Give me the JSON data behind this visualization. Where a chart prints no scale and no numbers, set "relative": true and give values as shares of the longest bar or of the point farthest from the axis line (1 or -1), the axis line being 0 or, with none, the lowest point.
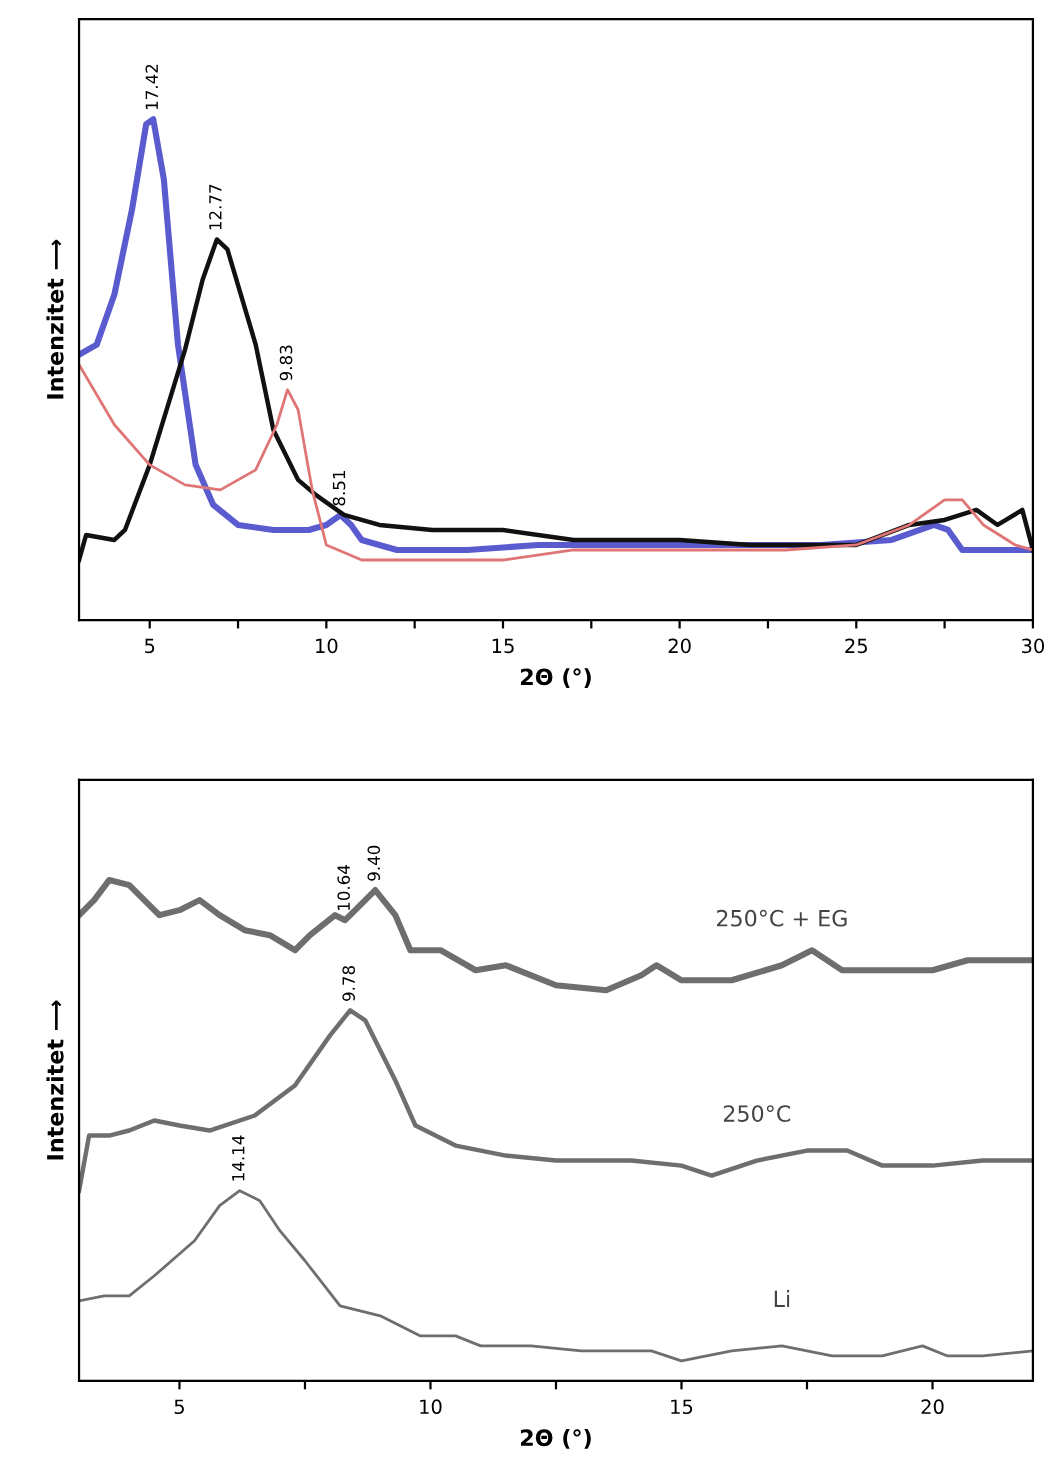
{
  "chart_data": [
    {
      "type": "line",
      "relative": true,
      "xlabel": "2Θ (°)",
      "ylabel": "Intenzitet ⟶",
      "xlim": [
        3,
        30
      ],
      "xticks": [
        5,
        {
          "value": 7.5,
          "label": null
        },
        10,
        {
          "value": 12.5,
          "label": null
        },
        15,
        {
          "value": 17.5,
          "label": null
        },
        20,
        {
          "value": 22.5,
          "label": null
        },
        25,
        {
          "value": 27.5,
          "label": null
        },
        30
      ],
      "tick_labels": "x",
      "grid": false,
      "legend": false,
      "series": [
        {
          "color": "#5b5bd0",
          "x": [
            3.0,
            3.5,
            4.0,
            4.5,
            4.9,
            5.1,
            5.4,
            5.8,
            6.3,
            6.8,
            7.5,
            8.5,
            9.5,
            10.0,
            10.4,
            10.7,
            11,
            12,
            14,
            16,
            20,
            24,
            26,
            27.2,
            27.6,
            28,
            30
          ],
          "values": [
            0.53,
            0.55,
            0.65,
            0.82,
            0.99,
            1.0,
            0.88,
            0.55,
            0.31,
            0.23,
            0.19,
            0.18,
            0.18,
            0.19,
            0.21,
            0.19,
            0.16,
            0.14,
            0.14,
            0.15,
            0.15,
            0.15,
            0.16,
            0.19,
            0.18,
            0.14,
            0.14
          ]
        },
        {
          "color": "#111111",
          "x": [
            3.0,
            3.2,
            4,
            4.3,
            5,
            6,
            6.5,
            6.9,
            7.2,
            8,
            8.5,
            9.2,
            9.7,
            10.5,
            11.5,
            13,
            15,
            17,
            20,
            22,
            25,
            26.5,
            27.5,
            28.4,
            29,
            29.7,
            30
          ],
          "values": [
            0.12,
            0.17,
            0.16,
            0.18,
            0.31,
            0.54,
            0.68,
            0.76,
            0.74,
            0.55,
            0.38,
            0.28,
            0.25,
            0.21,
            0.19,
            0.18,
            0.18,
            0.16,
            0.16,
            0.15,
            0.15,
            0.19,
            0.2,
            0.22,
            0.19,
            0.22,
            0.14
          ]
        },
        {
          "color": "#e07575",
          "x": [
            3.0,
            4,
            5,
            6,
            7,
            8,
            8.6,
            8.9,
            9.2,
            9.6,
            10.0,
            11,
            13,
            15,
            17,
            20,
            23,
            25,
            26.5,
            27.5,
            28,
            28.6,
            29.5,
            30
          ],
          "values": [
            0.51,
            0.39,
            0.31,
            0.27,
            0.26,
            0.3,
            0.39,
            0.46,
            0.42,
            0.26,
            0.15,
            0.12,
            0.12,
            0.12,
            0.14,
            0.14,
            0.14,
            0.15,
            0.19,
            0.24,
            0.24,
            0.19,
            0.15,
            0.14
          ]
        }
      ],
      "annotations": [
        {
          "text": "17.42",
          "x": 5.1,
          "y": 1.0
        },
        {
          "text": "12.77",
          "x": 6.9,
          "y": 0.76
        },
        {
          "text": "9.83",
          "x": 8.9,
          "y": 0.46
        },
        {
          "text": "8.51",
          "x": 10.4,
          "y": 0.21
        }
      ]
    },
    {
      "type": "line",
      "relative": true,
      "xlabel": "2Θ (°)",
      "ylabel": "Intenzitet ⟶",
      "xlim": [
        3,
        22
      ],
      "xticks": [
        5,
        {
          "value": 7.5,
          "label": null
        },
        10,
        {
          "value": 12.5,
          "label": null
        },
        15,
        {
          "value": 17.5,
          "label": null
        },
        20
      ],
      "tick_labels": "x",
      "grid": false,
      "legend": false,
      "series": [
        {
          "name": "250°C + EG",
          "color": "#6e6e6e",
          "x": [
            3.0,
            3.3,
            3.6,
            4.0,
            4.6,
            5.0,
            5.4,
            5.8,
            6.3,
            6.8,
            7.3,
            7.6,
            8.1,
            8.3,
            8.6,
            8.9,
            9.3,
            9.6,
            10.2,
            10.9,
            11.5,
            12.5,
            13.5,
            14.2,
            14.5,
            15.0,
            15.5,
            16,
            17,
            17.6,
            18.2,
            19,
            20,
            20.7,
            22
          ],
          "values": [
            0.93,
            0.96,
            1.0,
            0.99,
            0.93,
            0.94,
            0.96,
            0.93,
            0.9,
            0.89,
            0.86,
            0.89,
            0.93,
            0.92,
            0.95,
            0.98,
            0.93,
            0.86,
            0.86,
            0.82,
            0.83,
            0.79,
            0.78,
            0.81,
            0.83,
            0.8,
            0.8,
            0.8,
            0.83,
            0.86,
            0.82,
            0.82,
            0.82,
            0.84,
            0.84
          ]
        },
        {
          "name": "250°C",
          "color": "#6e6e6e",
          "x": [
            3.0,
            3.2,
            3.6,
            4.0,
            4.5,
            5.0,
            5.6,
            6.5,
            7.3,
            8.0,
            8.4,
            8.7,
            9.3,
            9.7,
            10.5,
            11.5,
            12.5,
            13,
            14,
            15,
            15.6,
            16.5,
            17.5,
            18.3,
            19,
            20,
            21,
            22
          ],
          "values": [
            0.38,
            0.49,
            0.49,
            0.5,
            0.52,
            0.51,
            0.5,
            0.53,
            0.59,
            0.69,
            0.74,
            0.72,
            0.6,
            0.51,
            0.47,
            0.45,
            0.44,
            0.44,
            0.44,
            0.43,
            0.41,
            0.44,
            0.46,
            0.46,
            0.43,
            0.43,
            0.44,
            0.44
          ]
        },
        {
          "name": "Li",
          "color": "#6e6e6e",
          "x": [
            3.0,
            3.5,
            4.0,
            4.5,
            5.3,
            5.8,
            6.2,
            6.6,
            7.0,
            7.5,
            8.2,
            9.0,
            9.8,
            10.5,
            11,
            12,
            13,
            14,
            14.4,
            15,
            16,
            17,
            18,
            19,
            19.8,
            20.3,
            21,
            22
          ],
          "values": [
            0.16,
            0.17,
            0.17,
            0.21,
            0.28,
            0.35,
            0.38,
            0.36,
            0.3,
            0.24,
            0.15,
            0.13,
            0.09,
            0.09,
            0.07,
            0.07,
            0.06,
            0.06,
            0.06,
            0.04,
            0.06,
            0.07,
            0.05,
            0.05,
            0.07,
            0.05,
            0.05,
            0.06
          ]
        }
      ],
      "annotations": [
        {
          "text": "10.64",
          "x": 8.3,
          "y": 0.92
        },
        {
          "text": "9.40",
          "x": 8.9,
          "y": 0.98
        },
        {
          "text": "9.78",
          "x": 8.4,
          "y": 0.74
        },
        {
          "text": "14.14",
          "x": 6.2,
          "y": 0.38
        }
      ]
    }
  ]
}
